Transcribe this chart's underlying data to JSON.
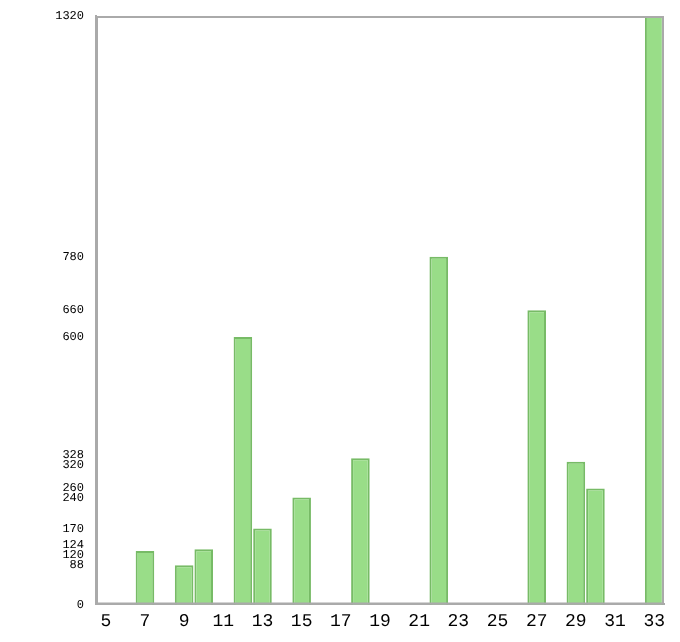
{
  "chart_data": {
    "type": "bar",
    "categories": [
      "5",
      null,
      "7",
      null,
      "9",
      null,
      "11",
      null,
      "13",
      null,
      "15",
      null,
      "17",
      null,
      "19",
      null,
      "21",
      null,
      "23",
      null,
      "25",
      null,
      "27",
      null,
      "29",
      null,
      "31",
      null,
      "33"
    ],
    "values": [
      0,
      0,
      120,
      0,
      88,
      124,
      0,
      600,
      170,
      0,
      240,
      0,
      0,
      328,
      0,
      0,
      0,
      780,
      0,
      0,
      0,
      0,
      660,
      0,
      320,
      260,
      0,
      0,
      1320
    ],
    "color": "#99dd88",
    "ylim": [
      0,
      1320
    ],
    "yticks": [
      0,
      88,
      120,
      124,
      170,
      240,
      260,
      320,
      328,
      600,
      660,
      780,
      1320
    ],
    "grid": false
  }
}
